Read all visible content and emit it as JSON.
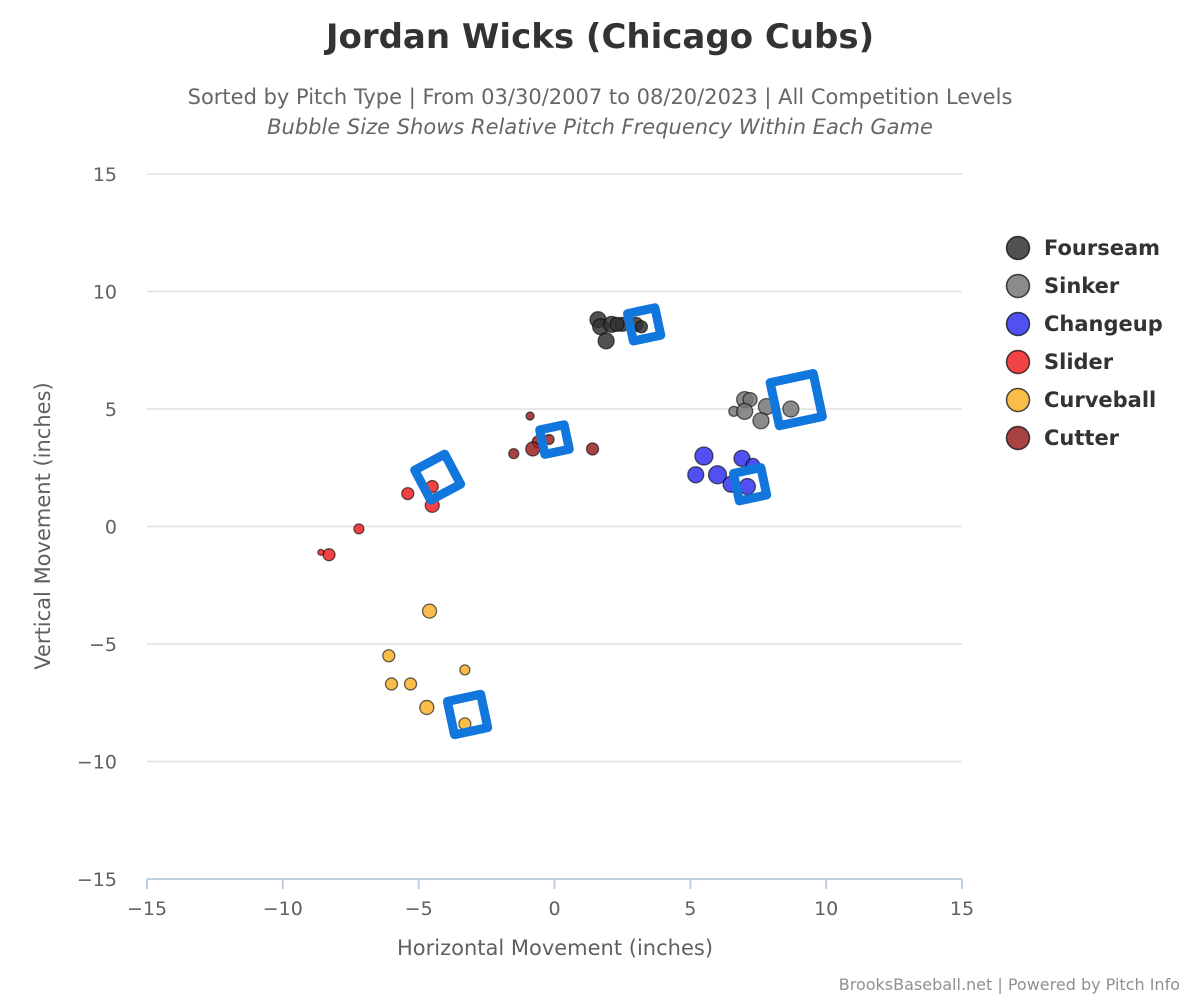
{
  "chart_data": {
    "type": "scatter",
    "title": "Jordan Wicks (Chicago Cubs)",
    "subtitle": "Sorted by Pitch Type | From 03/30/2007 to 08/20/2023 | All Competition Levels",
    "subtitle2": "Bubble Size Shows Relative Pitch Frequency Within Each Game",
    "xlabel": "Horizontal Movement (inches)",
    "ylabel": "Vertical Movement (inches)",
    "xlim": [
      -15,
      15
    ],
    "ylim": [
      -15,
      15
    ],
    "x_ticks": [
      -15,
      -10,
      -5,
      0,
      5,
      10,
      15
    ],
    "y_ticks": [
      -15,
      -10,
      -5,
      0,
      5,
      10,
      15
    ],
    "x_tick_labels": [
      "−15",
      "−10",
      "−5",
      "0",
      "5",
      "10",
      "15"
    ],
    "y_tick_labels": [
      "−15",
      "−10",
      "−5",
      "0",
      "5",
      "10",
      "15"
    ],
    "grid": "horizontal",
    "legend_position": "right",
    "credit": "BrooksBaseball.net | Powered by Pitch Info",
    "series": [
      {
        "name": "Fourseam",
        "color": "#333333",
        "points": [
          {
            "x": 1.6,
            "y": 8.8,
            "size": 8
          },
          {
            "x": 1.7,
            "y": 8.5,
            "size": 8
          },
          {
            "x": 2.1,
            "y": 8.6,
            "size": 8
          },
          {
            "x": 2.5,
            "y": 8.6,
            "size": 7
          },
          {
            "x": 2.3,
            "y": 8.6,
            "size": 7
          },
          {
            "x": 3.0,
            "y": 8.6,
            "size": 7
          },
          {
            "x": 3.2,
            "y": 8.5,
            "size": 6
          },
          {
            "x": 1.9,
            "y": 7.9,
            "size": 8
          }
        ],
        "average": {
          "x": 3.3,
          "y": 8.6
        }
      },
      {
        "name": "Sinker",
        "color": "#777777",
        "points": [
          {
            "x": 7.0,
            "y": 5.4,
            "size": 8
          },
          {
            "x": 7.2,
            "y": 5.4,
            "size": 7
          },
          {
            "x": 6.6,
            "y": 4.9,
            "size": 5
          },
          {
            "x": 7.0,
            "y": 4.9,
            "size": 8
          },
          {
            "x": 7.8,
            "y": 5.1,
            "size": 8
          },
          {
            "x": 7.6,
            "y": 4.5,
            "size": 8
          },
          {
            "x": 8.7,
            "y": 5.0,
            "size": 8
          }
        ],
        "average": {
          "x": 8.9,
          "y": 5.4
        }
      },
      {
        "name": "Changeup",
        "color": "#3333ee",
        "points": [
          {
            "x": 5.5,
            "y": 3.0,
            "size": 9
          },
          {
            "x": 5.2,
            "y": 2.2,
            "size": 8
          },
          {
            "x": 6.0,
            "y": 2.2,
            "size": 9
          },
          {
            "x": 6.5,
            "y": 1.8,
            "size": 8
          },
          {
            "x": 6.9,
            "y": 2.9,
            "size": 8
          },
          {
            "x": 7.3,
            "y": 2.6,
            "size": 7
          },
          {
            "x": 7.1,
            "y": 1.7,
            "size": 8
          }
        ],
        "average": {
          "x": 7.2,
          "y": 1.8
        }
      },
      {
        "name": "Slider",
        "color": "#ee2222",
        "points": [
          {
            "x": -4.5,
            "y": 1.7,
            "size": 6
          },
          {
            "x": -5.4,
            "y": 1.4,
            "size": 6
          },
          {
            "x": -4.5,
            "y": 0.9,
            "size": 7
          },
          {
            "x": -7.2,
            "y": -0.1,
            "size": 5
          },
          {
            "x": -8.3,
            "y": -1.2,
            "size": 6
          },
          {
            "x": -8.6,
            "y": -1.1,
            "size": 3
          }
        ],
        "average": {
          "x": -4.3,
          "y": 2.1
        }
      },
      {
        "name": "Curveball",
        "color": "#f7b22a",
        "points": [
          {
            "x": -4.6,
            "y": -3.6,
            "size": 7
          },
          {
            "x": -6.1,
            "y": -5.5,
            "size": 6
          },
          {
            "x": -6.0,
            "y": -6.7,
            "size": 6
          },
          {
            "x": -5.3,
            "y": -6.7,
            "size": 6
          },
          {
            "x": -3.3,
            "y": -6.1,
            "size": 5
          },
          {
            "x": -4.7,
            "y": -7.7,
            "size": 7
          },
          {
            "x": -3.3,
            "y": -8.4,
            "size": 6
          }
        ],
        "average": {
          "x": -3.2,
          "y": -8.0
        }
      },
      {
        "name": "Cutter",
        "color": "#992222",
        "points": [
          {
            "x": -0.9,
            "y": 4.7,
            "size": 4
          },
          {
            "x": -0.6,
            "y": 3.6,
            "size": 6
          },
          {
            "x": -0.2,
            "y": 3.7,
            "size": 5
          },
          {
            "x": -0.8,
            "y": 3.3,
            "size": 7
          },
          {
            "x": -1.5,
            "y": 3.1,
            "size": 5
          },
          {
            "x": 1.4,
            "y": 3.3,
            "size": 6
          }
        ],
        "average": {
          "x": 0.0,
          "y": 3.7
        }
      }
    ]
  }
}
